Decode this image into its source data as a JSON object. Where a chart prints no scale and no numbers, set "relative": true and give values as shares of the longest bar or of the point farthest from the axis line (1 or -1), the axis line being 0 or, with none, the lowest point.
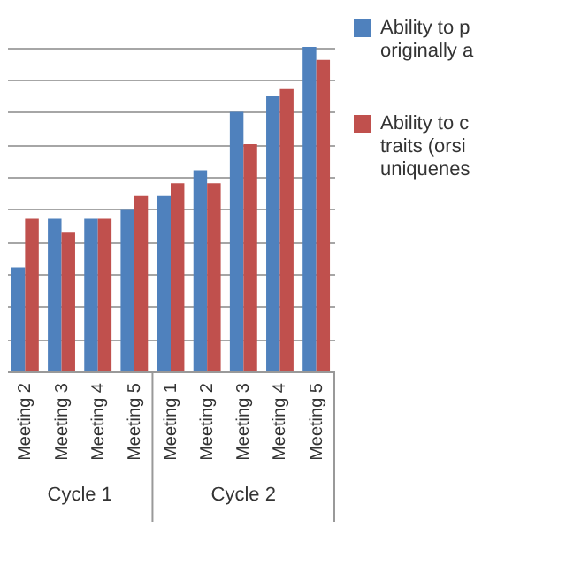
{
  "chart_data": {
    "type": "bar",
    "relative": true,
    "grid": "y",
    "legend": "right",
    "categories": [
      "Meeting 2",
      "Meeting 3",
      "Meeting 4",
      "Meeting 5",
      "Meeting 1",
      "Meeting 2",
      "Meeting 3",
      "Meeting 4",
      "Meeting 5"
    ],
    "series": [
      {
        "name": "Ability to p\noriginally a",
        "color": "#4f81bd",
        "values": [
          0.32,
          0.47,
          0.47,
          0.5,
          0.54,
          0.62,
          0.8,
          0.85,
          1
        ]
      },
      {
        "name": "Ability to c\ntraits (orsi\nuniquenes",
        "color": "#c0504d",
        "values": [
          0.47,
          0.43,
          0.47,
          0.54,
          0.58,
          0.58,
          0.7,
          0.87,
          0.96
        ]
      }
    ],
    "annotations": [
      "Cycle 1",
      "Cycle 2"
    ]
  }
}
